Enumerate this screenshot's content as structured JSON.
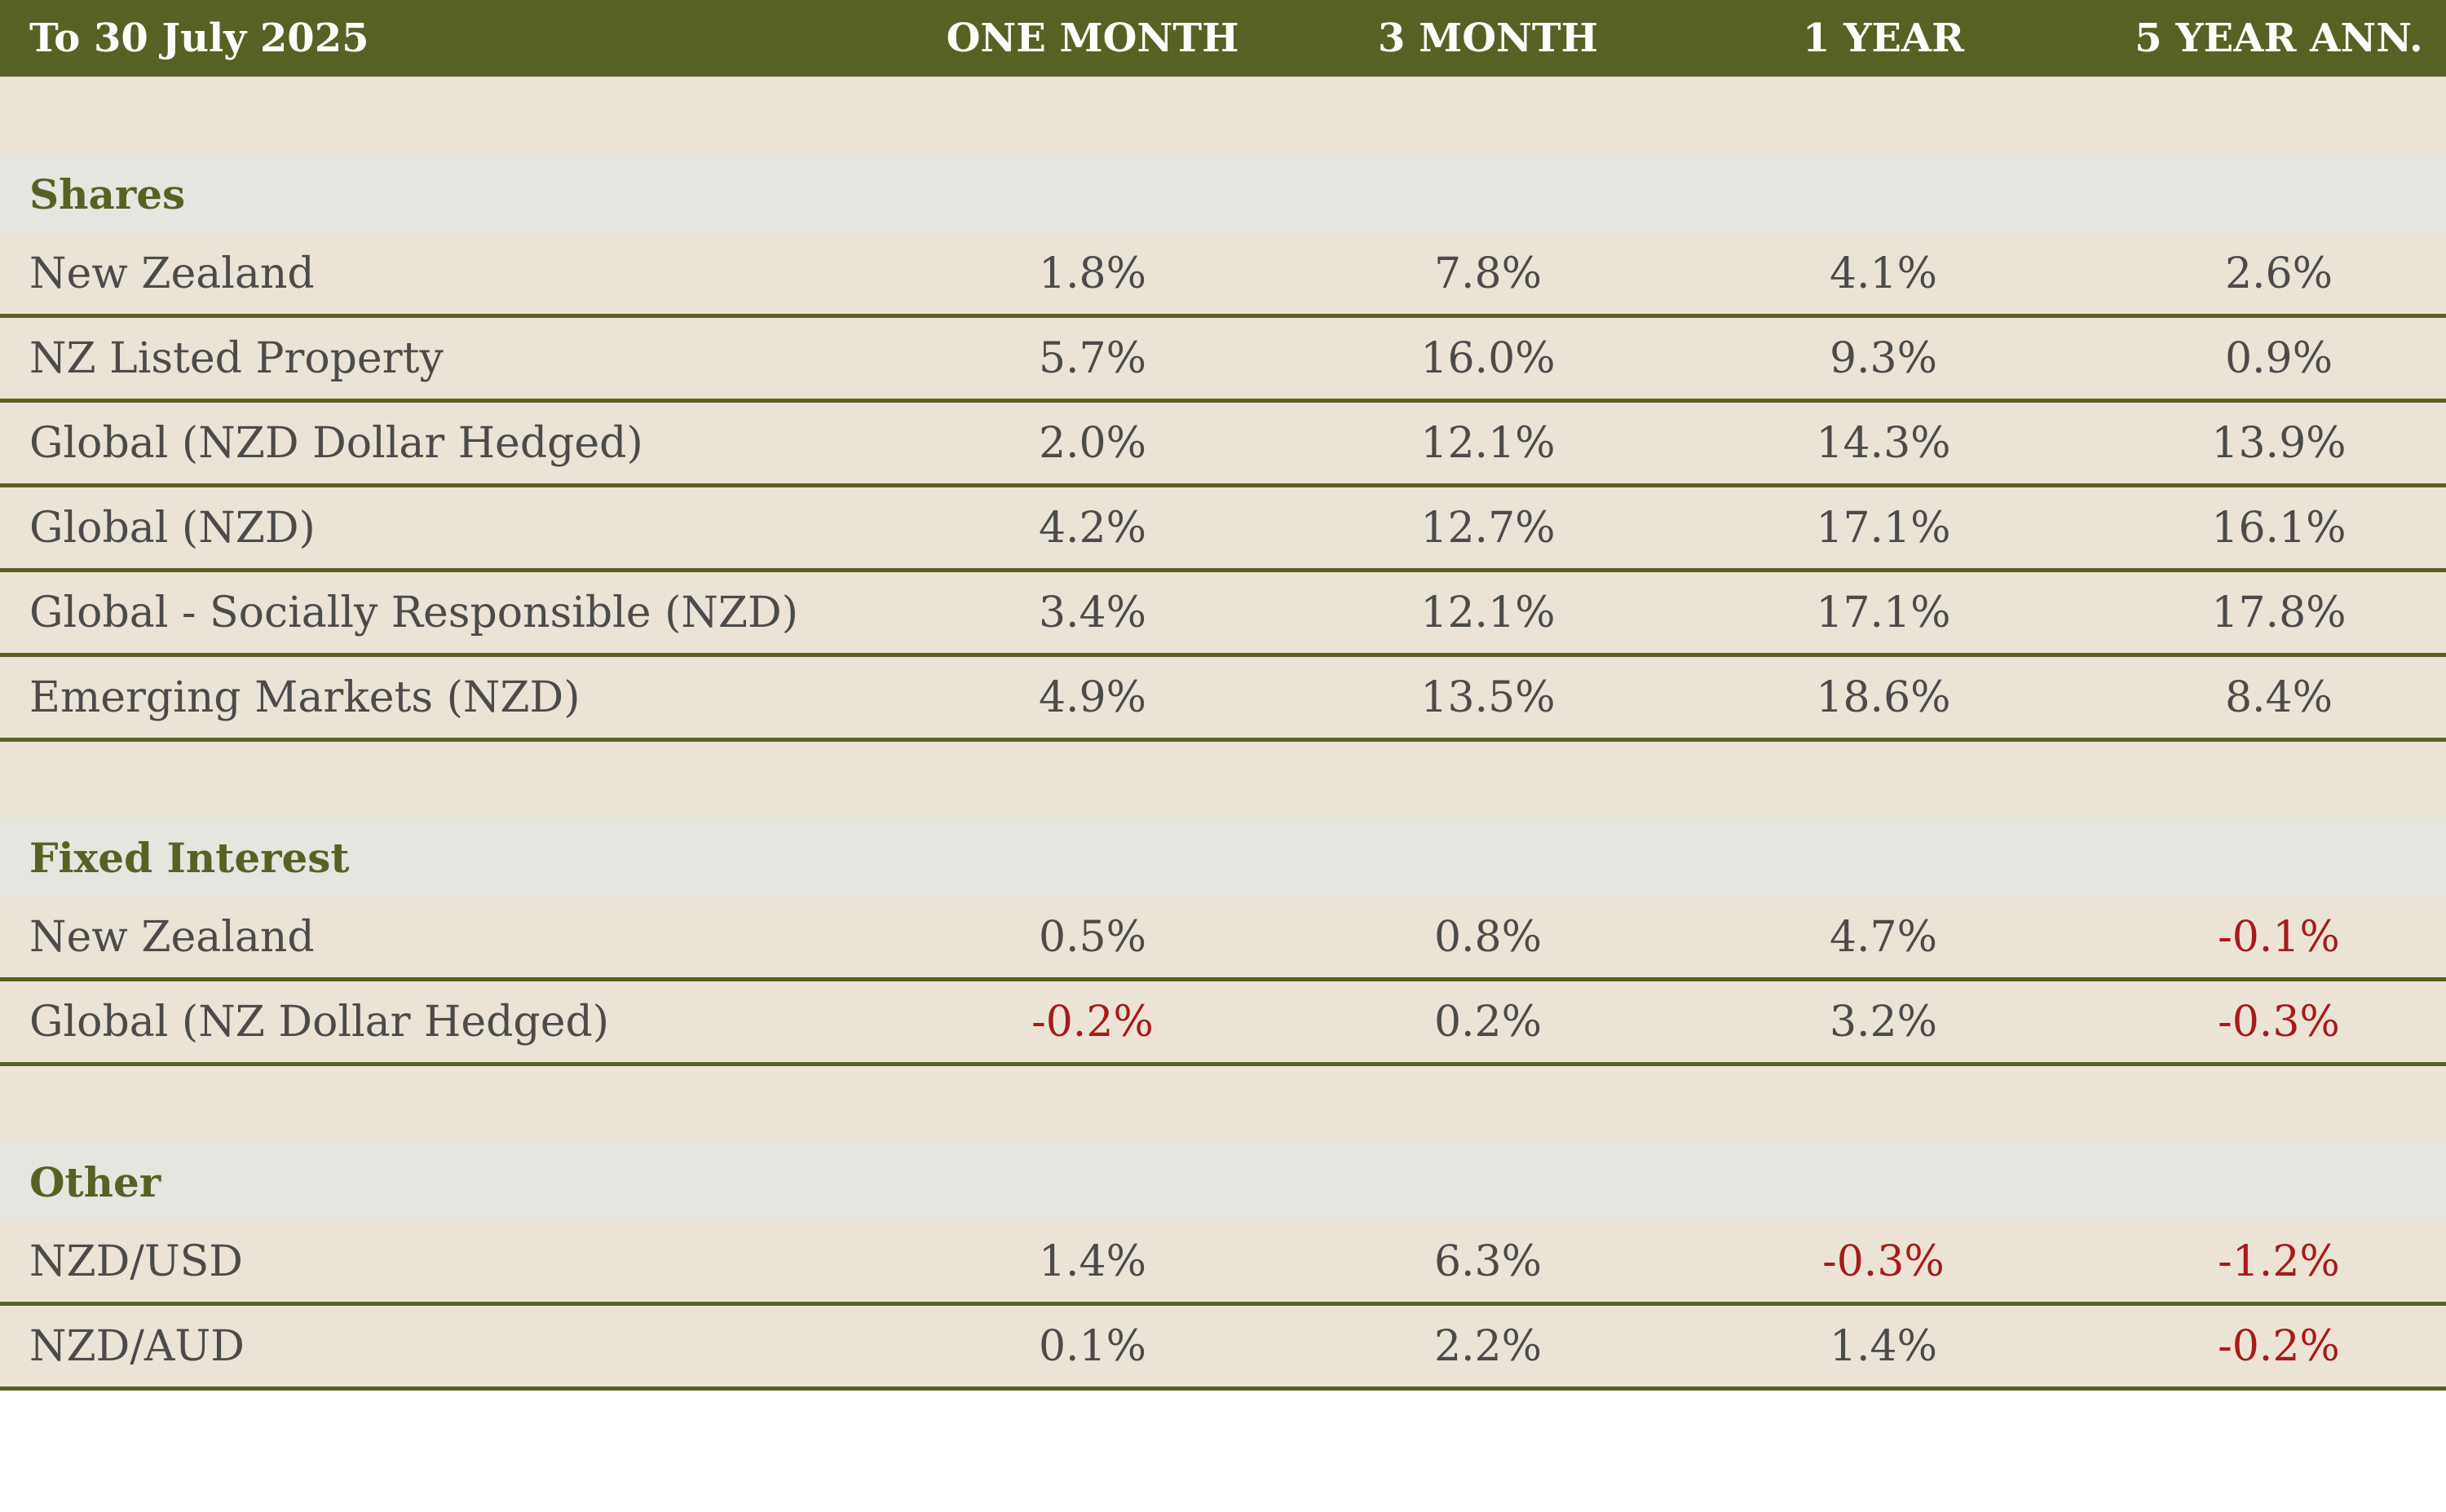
{
  "header": {
    "period": "To 30 July 2025",
    "columns": [
      "ONE MONTH",
      "3 MONTH",
      "1 YEAR",
      "5 YEAR ANN."
    ]
  },
  "sections": [
    {
      "title": "Shares",
      "rows": [
        {
          "label": "New Zealand",
          "values": [
            "1.8%",
            "7.8%",
            "4.1%",
            "2.6%"
          ]
        },
        {
          "label": "NZ Listed Property",
          "values": [
            "5.7%",
            "16.0%",
            "9.3%",
            "0.9%"
          ]
        },
        {
          "label": "Global (NZD Dollar Hedged)",
          "values": [
            "2.0%",
            "12.1%",
            "14.3%",
            "13.9%"
          ]
        },
        {
          "label": "Global (NZD)",
          "values": [
            "4.2%",
            "12.7%",
            "17.1%",
            "16.1%"
          ]
        },
        {
          "label": "Global - Socially Responsible (NZD)",
          "values": [
            "3.4%",
            "12.1%",
            "17.1%",
            "17.8%"
          ]
        },
        {
          "label": "Emerging Markets (NZD)",
          "values": [
            "4.9%",
            "13.5%",
            "18.6%",
            "8.4%"
          ]
        }
      ]
    },
    {
      "title": "Fixed Interest",
      "rows": [
        {
          "label": "New Zealand",
          "values": [
            "0.5%",
            "0.8%",
            "4.7%",
            "-0.1%"
          ]
        },
        {
          "label": "Global (NZ Dollar Hedged)",
          "values": [
            "-0.2%",
            "0.2%",
            "3.2%",
            "-0.3%"
          ]
        }
      ]
    },
    {
      "title": "Other",
      "rows": [
        {
          "label": "NZD/USD",
          "values": [
            "1.4%",
            "6.3%",
            "-0.3%",
            "-1.2%"
          ]
        },
        {
          "label": "NZD/AUD",
          "values": [
            "0.1%",
            "2.2%",
            "1.4%",
            "-0.2%"
          ]
        }
      ]
    }
  ],
  "colors": {
    "header_bg": "#586124",
    "row_bg": "#ebe4d6",
    "category_bg": "#e5e6df",
    "negative": "#a81a1a",
    "text": "#4b4b4b"
  }
}
